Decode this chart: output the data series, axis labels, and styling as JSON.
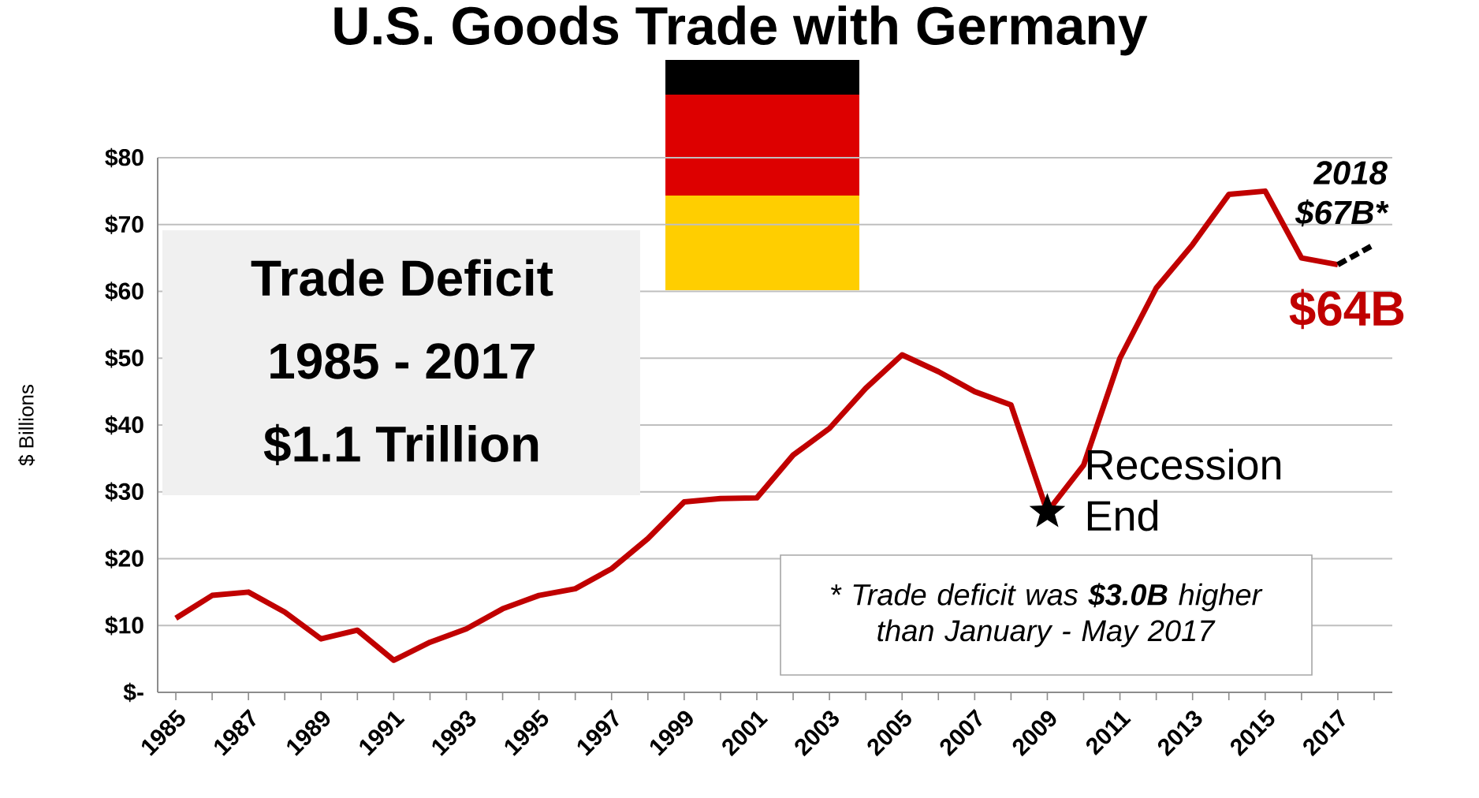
{
  "chart_data": {
    "type": "line",
    "title": "U.S. Goods Trade with Germany",
    "ylabel": "$ Billions",
    "xlim": [
      1984.5,
      2018.5
    ],
    "xticks": [
      1985,
      {
        "value": 1986,
        "label": null
      },
      1987,
      {
        "value": 1988,
        "label": null
      },
      1989,
      {
        "value": 1990,
        "label": null
      },
      1991,
      {
        "value": 1992,
        "label": null
      },
      1993,
      {
        "value": 1994,
        "label": null
      },
      1995,
      {
        "value": 1996,
        "label": null
      },
      1997,
      {
        "value": 1998,
        "label": null
      },
      1999,
      {
        "value": 2000,
        "label": null
      },
      2001,
      {
        "value": 2002,
        "label": null
      },
      2003,
      {
        "value": 2004,
        "label": null
      },
      2005,
      {
        "value": 2006,
        "label": null
      },
      2007,
      {
        "value": 2008,
        "label": null
      },
      2009,
      {
        "value": 2010,
        "label": null
      },
      2011,
      {
        "value": 2012,
        "label": null
      },
      2013,
      {
        "value": 2014,
        "label": null
      },
      2015,
      {
        "value": 2016,
        "label": null
      },
      2017,
      {
        "value": 2018,
        "label": null
      }
    ],
    "ylim": [
      0,
      80
    ],
    "yticks": [
      {
        "value": 0,
        "label": "$-"
      },
      {
        "value": 10,
        "label": "$10"
      },
      {
        "value": 20,
        "label": "$20"
      },
      {
        "value": 30,
        "label": "$30"
      },
      {
        "value": 40,
        "label": "$40"
      },
      {
        "value": 50,
        "label": "$50"
      },
      {
        "value": 60,
        "label": "$60"
      },
      {
        "value": 70,
        "label": "$70"
      },
      {
        "value": 80,
        "label": "$80"
      }
    ],
    "grid": "y",
    "marker": "none",
    "series": [
      {
        "color": "#c00000",
        "line_style": "solid",
        "x": [
          1985,
          1986,
          1987,
          1988,
          1989,
          1990,
          1991,
          1992,
          1993,
          1994,
          1995,
          1996,
          1997,
          1998,
          1999,
          2000,
          2001,
          2002,
          2003,
          2004,
          2005,
          2006,
          2007,
          2008,
          2009,
          2010,
          2011,
          2012,
          2013,
          2014,
          2015,
          2016,
          2017
        ],
        "values": [
          11.1,
          14.5,
          15,
          12,
          8,
          9.3,
          4.8,
          7.5,
          9.5,
          12.5,
          14.5,
          15.5,
          18.5,
          23,
          28.5,
          29,
          29.1,
          35.5,
          39.5,
          45.5,
          50.5,
          48,
          45,
          43,
          27,
          34,
          50,
          60.5,
          67,
          74.5,
          75,
          65,
          64
        ]
      },
      {
        "color": "#000000",
        "line_style": "dashed",
        "x": [
          2017,
          2018
        ],
        "values": [
          64,
          67
        ]
      }
    ],
    "annotations": [
      "Trade Deficit",
      "1985 - 2017",
      "$1.1 Trillion",
      {
        "text": "Recession End",
        "x": 2009,
        "y": 27
      },
      {
        "text": "$64B",
        "x": 2017,
        "y": 64
      },
      {
        "text": "2018 $67B*",
        "x": 2018,
        "y": 67
      },
      "* Trade deficit was **$3.0B** higher than January - May 2017"
    ]
  }
}
